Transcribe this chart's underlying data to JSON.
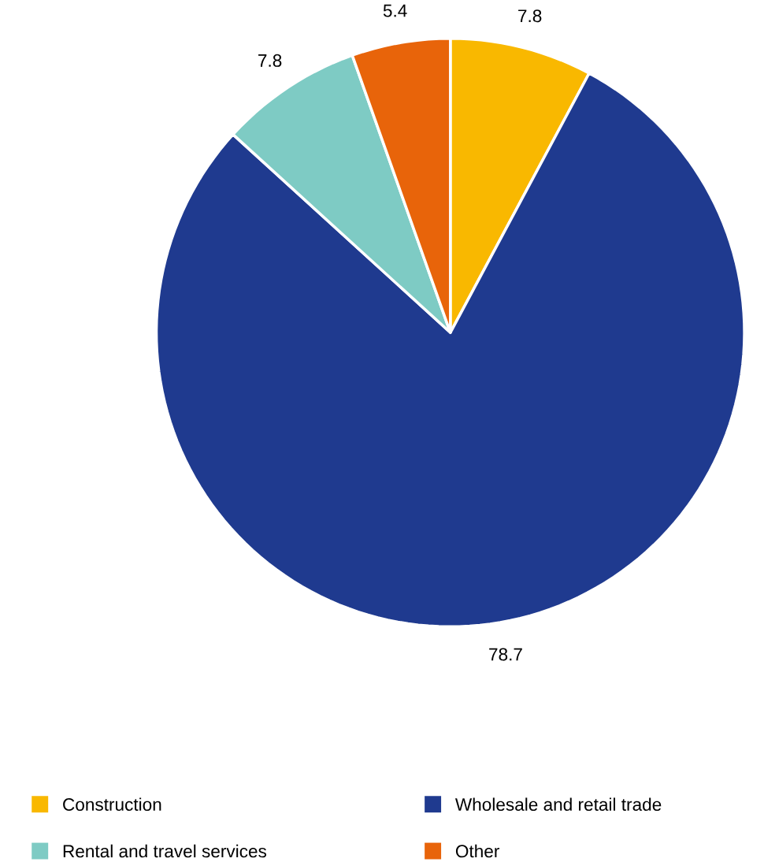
{
  "chart_data": {
    "type": "pie",
    "categories": [
      "Construction",
      "Wholesale and retail trade",
      "Rental and travel services",
      "Other"
    ],
    "values": [
      7.8,
      78.7,
      7.8,
      5.4
    ],
    "colors": [
      "#f9b800",
      "#1f3a8f",
      "#7ecbc4",
      "#e8640a"
    ],
    "data_labels": true,
    "legend": "bottom"
  }
}
